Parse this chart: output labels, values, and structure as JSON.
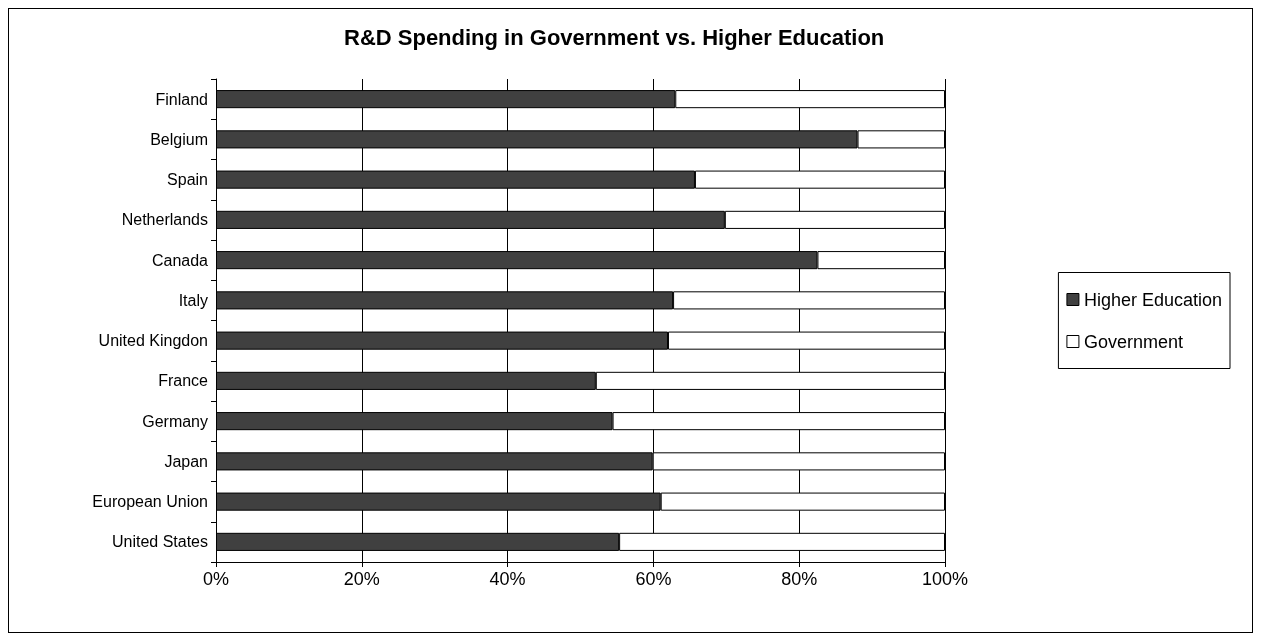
{
  "chart_data": {
    "type": "bar",
    "title": "R&D Spending in Government vs. Higher Education",
    "orientation": "horizontal",
    "stacked": true,
    "categories": [
      "Finland",
      "Belgium",
      "Spain",
      "Netherlands",
      "Canada",
      "Italy",
      "United Kingdon",
      "France",
      "Germany",
      "Japan",
      "European Union",
      "United States"
    ],
    "series": [
      {
        "name": "Higher Education",
        "color": "#404040",
        "values": [
          63,
          88,
          65.7,
          69.8,
          82.5,
          62.7,
          62,
          52.1,
          54.4,
          59.9,
          61,
          55.3
        ]
      },
      {
        "name": "Government",
        "color": "#ffffff",
        "values": [
          37,
          12,
          34.3,
          30.2,
          17.5,
          37.3,
          38,
          47.9,
          45.6,
          40.1,
          39,
          44.7
        ]
      }
    ],
    "xlim": [
      0,
      100
    ],
    "xticks": [
      {
        "value": 0,
        "label": "0%"
      },
      {
        "value": 20,
        "label": "20%"
      },
      {
        "value": 40,
        "label": "40%"
      },
      {
        "value": 60,
        "label": "60%"
      },
      {
        "value": 80,
        "label": "80%"
      },
      {
        "value": 100,
        "label": "100%"
      }
    ],
    "grid": "x",
    "legend": "right"
  }
}
